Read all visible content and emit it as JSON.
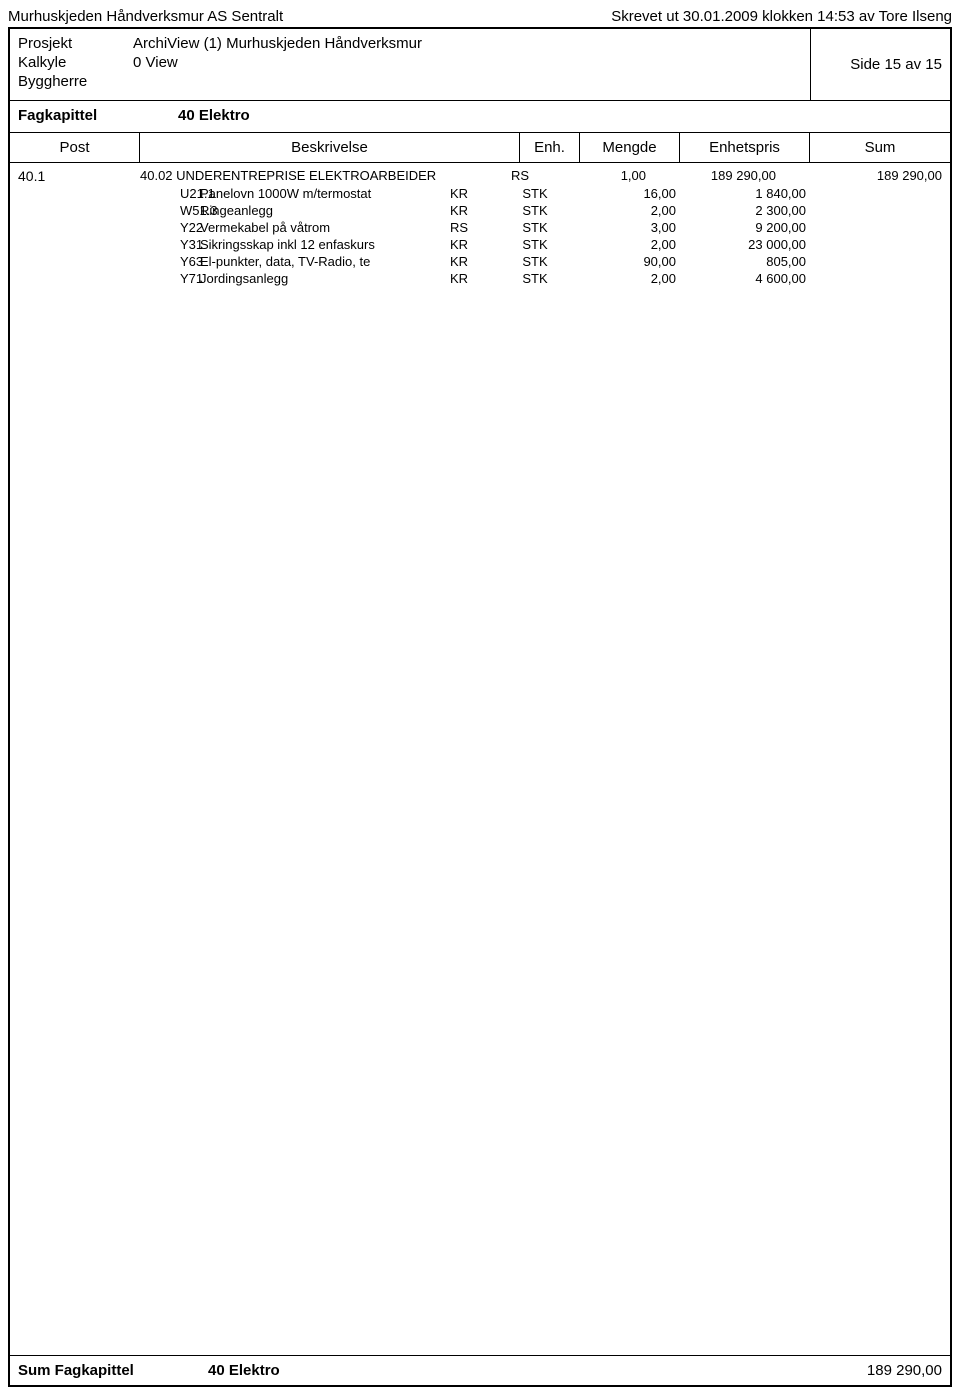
{
  "header": {
    "company": "Murhuskjeden Håndverksmur AS Sentralt",
    "print_info": "Skrevet ut 30.01.2009 klokken 14:53 av Tore Ilseng"
  },
  "info": {
    "prosjekt_label": "Prosjekt",
    "prosjekt_value": "ArchiView (1) Murhuskjeden Håndverksmur",
    "kalkyle_label": "Kalkyle",
    "kalkyle_value": "0 View",
    "byggherre_label": "Byggherre",
    "side": "Side 15 av 15"
  },
  "fagkapittel": {
    "label": "Fagkapittel",
    "value": "40 Elektro"
  },
  "columns": {
    "post": "Post",
    "beskrivelse": "Beskrivelse",
    "enh": "Enh.",
    "mengde": "Mengde",
    "enhetspris": "Enhetspris",
    "sum": "Sum"
  },
  "main_row": {
    "post": "40.1",
    "beskrivelse": "40.02 UNDERENTREPRISE ELEKTROARBEIDER",
    "enh": "RS",
    "mengde": "1,00",
    "enhetspris": "189 290,00",
    "sum": "189 290,00"
  },
  "rows": [
    {
      "code": "U21.1",
      "desc": "Panelovn 1000W m/termostat",
      "kr": "KR",
      "enh": "STK",
      "mengde": "16,00",
      "enhetspris": "1 840,00"
    },
    {
      "code": "W51.3",
      "desc": "Ringeanlegg",
      "kr": "KR",
      "enh": "STK",
      "mengde": "2,00",
      "enhetspris": "2 300,00"
    },
    {
      "code": "Y22",
      "desc": "Vermekabel på våtrom",
      "kr": "RS",
      "enh": "STK",
      "mengde": "3,00",
      "enhetspris": "9 200,00"
    },
    {
      "code": "Y31",
      "desc": "Sikringsskap inkl 12 enfaskurs",
      "kr": "KR",
      "enh": "STK",
      "mengde": "2,00",
      "enhetspris": "23 000,00"
    },
    {
      "code": "Y63",
      "desc": "El-punkter, data, TV-Radio, te",
      "kr": "KR",
      "enh": "STK",
      "mengde": "90,00",
      "enhetspris": "805,00"
    },
    {
      "code": "Y71",
      "desc": "Jordingsanlegg",
      "kr": "KR",
      "enh": "STK",
      "mengde": "2,00",
      "enhetspris": "4 600,00"
    }
  ],
  "footer": {
    "label": "Sum Fagkapittel",
    "chapter": "40 Elektro",
    "total": "189 290,00"
  }
}
